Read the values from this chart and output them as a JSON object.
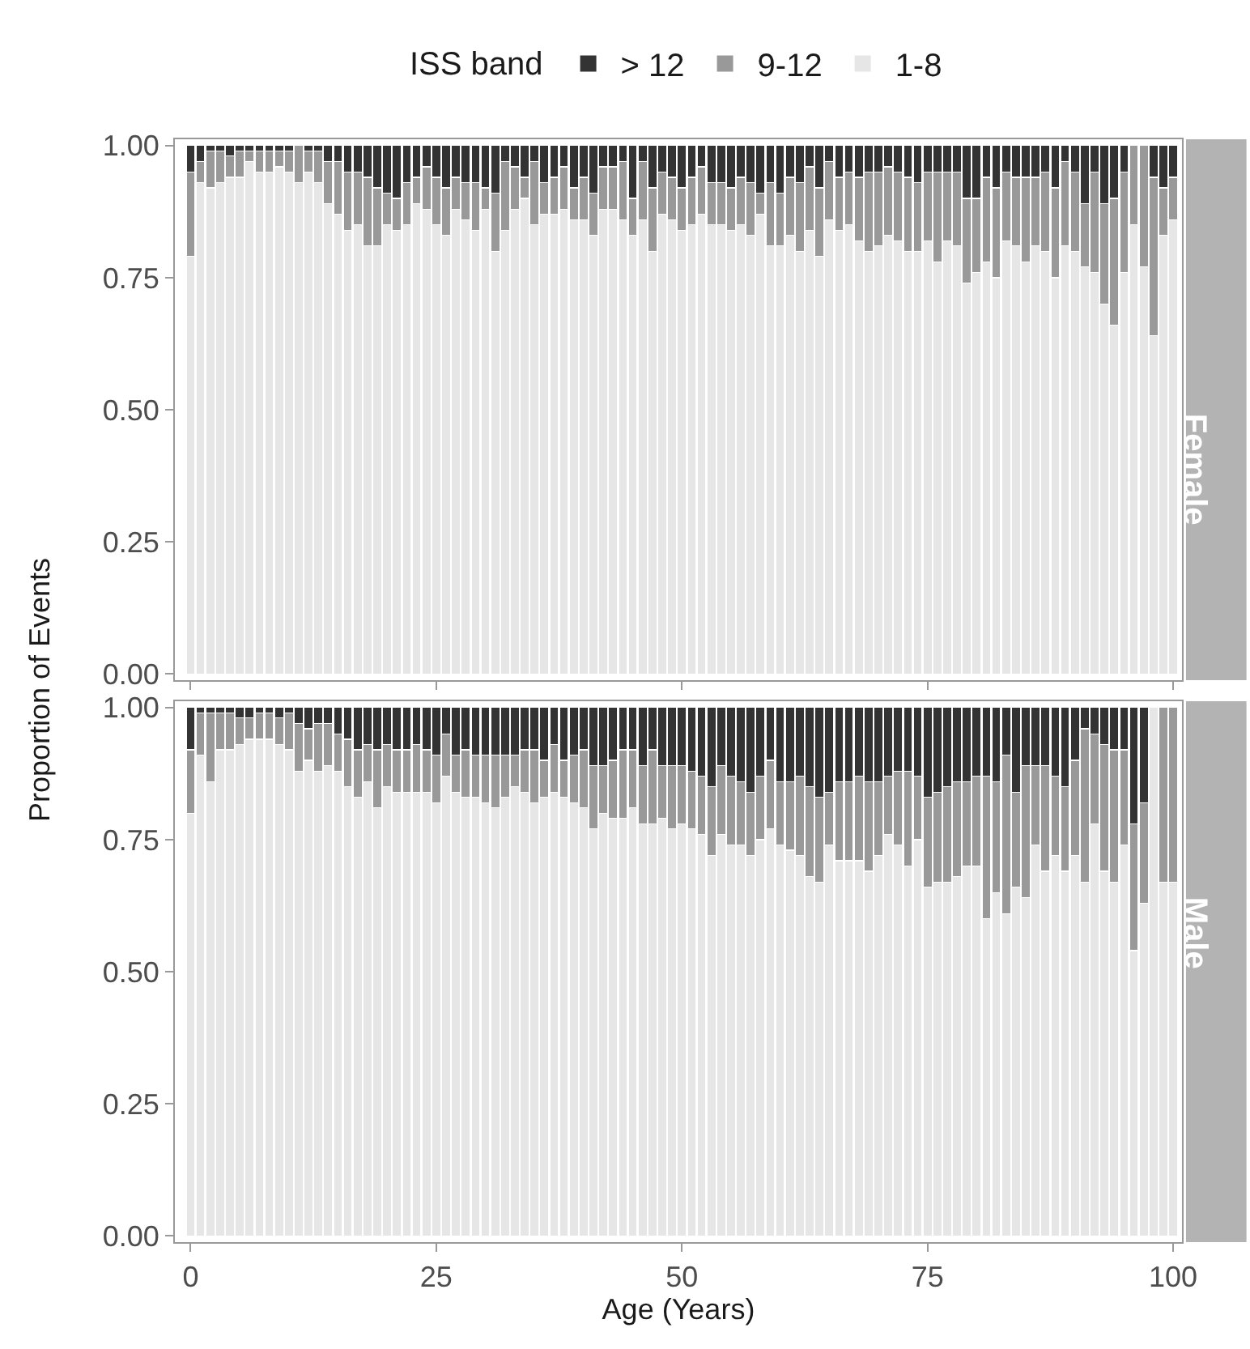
{
  "chart_data": [
    {
      "type": "bar",
      "title": "Female",
      "ylabel": "Proportion of Events",
      "legend_title": "ISS band",
      "legend": "top",
      "stacked": true,
      "tick_labels": "y",
      "x": [
        0,
        1,
        2,
        3,
        4,
        5,
        6,
        7,
        8,
        9,
        10,
        11,
        12,
        13,
        14,
        15,
        16,
        17,
        18,
        19,
        20,
        21,
        22,
        23,
        24,
        25,
        26,
        27,
        28,
        29,
        30,
        31,
        32,
        33,
        34,
        35,
        36,
        37,
        38,
        39,
        40,
        41,
        42,
        43,
        44,
        45,
        46,
        47,
        48,
        49,
        50,
        51,
        52,
        53,
        54,
        55,
        56,
        57,
        58,
        59,
        60,
        61,
        62,
        63,
        64,
        65,
        66,
        67,
        68,
        69,
        70,
        71,
        72,
        73,
        74,
        75,
        76,
        77,
        78,
        79,
        80,
        81,
        82,
        83,
        84,
        85,
        86,
        87,
        88,
        89,
        90,
        91,
        92,
        93,
        94,
        95,
        96,
        97,
        98,
        99,
        100
      ],
      "xlim": [
        -1.6,
        100.9
      ],
      "xticks": [
        0,
        25,
        50,
        75,
        100
      ],
      "ylim": [
        -0.012,
        1.012
      ],
      "yticks": [
        {
          "value": 0,
          "label": "0.00"
        },
        {
          "value": 0.25,
          "label": "0.25"
        },
        {
          "value": 0.5,
          "label": "0.50"
        },
        {
          "value": 0.75,
          "label": "0.75"
        },
        {
          "value": 1,
          "label": "1.00"
        }
      ],
      "series": [
        {
          "name": "1-8",
          "color": "#e6e6e6",
          "values": [
            0.79,
            0.93,
            0.92,
            0.93,
            0.94,
            0.94,
            0.97,
            0.95,
            0.95,
            0.96,
            0.95,
            0.93,
            0.95,
            0.93,
            0.89,
            0.87,
            0.84,
            0.85,
            0.81,
            0.81,
            0.85,
            0.84,
            0.85,
            0.89,
            0.88,
            0.85,
            0.83,
            0.88,
            0.86,
            0.84,
            0.88,
            0.8,
            0.84,
            0.88,
            0.9,
            0.85,
            0.87,
            0.87,
            0.88,
            0.86,
            0.86,
            0.83,
            0.88,
            0.88,
            0.86,
            0.83,
            0.86,
            0.8,
            0.87,
            0.86,
            0.84,
            0.85,
            0.87,
            0.85,
            0.85,
            0.84,
            0.85,
            0.83,
            0.87,
            0.81,
            0.81,
            0.83,
            0.8,
            0.84,
            0.79,
            0.86,
            0.84,
            0.85,
            0.82,
            0.8,
            0.81,
            0.83,
            0.82,
            0.8,
            0.8,
            0.82,
            0.78,
            0.82,
            0.81,
            0.74,
            0.76,
            0.78,
            0.75,
            0.82,
            0.81,
            0.78,
            0.81,
            0.8,
            0.75,
            0.81,
            0.8,
            0.77,
            0.76,
            0.7,
            0.66,
            0.76,
            0.85,
            0.77,
            0.64,
            0.83,
            0.86
          ]
        },
        {
          "name": "9-12",
          "color": "#999999",
          "values": [
            0.16,
            0.04,
            0.07,
            0.06,
            0.04,
            0.05,
            0.02,
            0.04,
            0.04,
            0.03,
            0.04,
            0.07,
            0.04,
            0.06,
            0.08,
            0.1,
            0.11,
            0.1,
            0.13,
            0.11,
            0.06,
            0.06,
            0.08,
            0.05,
            0.08,
            0.09,
            0.09,
            0.06,
            0.07,
            0.09,
            0.04,
            0.11,
            0.13,
            0.08,
            0.04,
            0.12,
            0.06,
            0.07,
            0.08,
            0.06,
            0.08,
            0.08,
            0.08,
            0.08,
            0.11,
            0.07,
            0.11,
            0.12,
            0.08,
            0.08,
            0.08,
            0.09,
            0.09,
            0.08,
            0.08,
            0.08,
            0.09,
            0.1,
            0.04,
            0.12,
            0.1,
            0.11,
            0.13,
            0.12,
            0.13,
            0.11,
            0.1,
            0.1,
            0.12,
            0.15,
            0.14,
            0.13,
            0.13,
            0.14,
            0.13,
            0.13,
            0.17,
            0.13,
            0.14,
            0.16,
            0.14,
            0.16,
            0.17,
            0.13,
            0.13,
            0.16,
            0.13,
            0.15,
            0.17,
            0.16,
            0.15,
            0.12,
            0.19,
            0.19,
            0.24,
            0.19,
            0.15,
            0.23,
            0.3,
            0.09,
            0.08
          ]
        },
        {
          "name": "> 12",
          "color": "#333333",
          "values": [
            0.05,
            0.03,
            0.01,
            0.01,
            0.02,
            0.01,
            0.01,
            0.01,
            0.01,
            0.01,
            0.01,
            0,
            0.01,
            0.01,
            0.03,
            0.03,
            0.05,
            0.05,
            0.06,
            0.08,
            0.09,
            0.1,
            0.07,
            0.06,
            0.04,
            0.06,
            0.08,
            0.06,
            0.07,
            0.07,
            0.08,
            0.09,
            0.03,
            0.04,
            0.06,
            0.03,
            0.07,
            0.06,
            0.04,
            0.08,
            0.06,
            0.09,
            0.04,
            0.04,
            0.03,
            0.1,
            0.03,
            0.08,
            0.05,
            0.06,
            0.08,
            0.06,
            0.04,
            0.07,
            0.07,
            0.08,
            0.06,
            0.07,
            0.09,
            0.07,
            0.09,
            0.06,
            0.07,
            0.04,
            0.08,
            0.03,
            0.06,
            0.05,
            0.06,
            0.05,
            0.05,
            0.04,
            0.05,
            0.06,
            0.07,
            0.05,
            0.05,
            0.05,
            0.05,
            0.1,
            0.1,
            0.06,
            0.08,
            0.05,
            0.06,
            0.06,
            0.06,
            0.05,
            0.08,
            0.03,
            0.05,
            0.11,
            0.05,
            0.11,
            0.1,
            0.05,
            0,
            0,
            0.06,
            0.08,
            0.06
          ]
        }
      ]
    },
    {
      "type": "bar",
      "title": "Male",
      "xlabel": "Age (Years)",
      "stacked": true,
      "x": [
        0,
        1,
        2,
        3,
        4,
        5,
        6,
        7,
        8,
        9,
        10,
        11,
        12,
        13,
        14,
        15,
        16,
        17,
        18,
        19,
        20,
        21,
        22,
        23,
        24,
        25,
        26,
        27,
        28,
        29,
        30,
        31,
        32,
        33,
        34,
        35,
        36,
        37,
        38,
        39,
        40,
        41,
        42,
        43,
        44,
        45,
        46,
        47,
        48,
        49,
        50,
        51,
        52,
        53,
        54,
        55,
        56,
        57,
        58,
        59,
        60,
        61,
        62,
        63,
        64,
        65,
        66,
        67,
        68,
        69,
        70,
        71,
        72,
        73,
        74,
        75,
        76,
        77,
        78,
        79,
        80,
        81,
        82,
        83,
        84,
        85,
        86,
        87,
        88,
        89,
        90,
        91,
        92,
        93,
        94,
        95,
        96,
        97,
        98,
        99,
        100
      ],
      "xlim": [
        -1.6,
        100.9
      ],
      "xticks": [
        0,
        25,
        50,
        75,
        100
      ],
      "ylim": [
        -0.012,
        1.012
      ],
      "yticks": [
        {
          "value": 0,
          "label": "0.00"
        },
        {
          "value": 0.25,
          "label": "0.25"
        },
        {
          "value": 0.5,
          "label": "0.50"
        },
        {
          "value": 0.75,
          "label": "0.75"
        },
        {
          "value": 1,
          "label": "1.00"
        }
      ],
      "series": [
        {
          "color": "#e6e6e6",
          "values": [
            0.8,
            0.91,
            0.86,
            0.92,
            0.92,
            0.93,
            0.94,
            0.94,
            0.94,
            0.93,
            0.92,
            0.88,
            0.9,
            0.88,
            0.89,
            0.88,
            0.85,
            0.83,
            0.86,
            0.81,
            0.85,
            0.84,
            0.84,
            0.84,
            0.84,
            0.82,
            0.87,
            0.84,
            0.83,
            0.83,
            0.82,
            0.81,
            0.83,
            0.85,
            0.84,
            0.82,
            0.83,
            0.84,
            0.83,
            0.82,
            0.81,
            0.77,
            0.8,
            0.79,
            0.79,
            0.81,
            0.78,
            0.78,
            0.79,
            0.77,
            0.78,
            0.77,
            0.76,
            0.72,
            0.76,
            0.74,
            0.74,
            0.72,
            0.75,
            0.77,
            0.74,
            0.73,
            0.72,
            0.68,
            0.67,
            0.74,
            0.71,
            0.71,
            0.71,
            0.69,
            0.72,
            0.76,
            0.74,
            0.7,
            0.75,
            0.66,
            0.67,
            0.67,
            0.68,
            0.7,
            0.7,
            0.6,
            0.65,
            0.61,
            0.66,
            0.64,
            0.74,
            0.69,
            0.72,
            0.69,
            0.72,
            0.67,
            0.78,
            0.69,
            0.67,
            0.74,
            0.54,
            0.63,
            1,
            0.67,
            0.67
          ]
        },
        {
          "color": "#999999",
          "values": [
            0.12,
            0.08,
            0.13,
            0.07,
            0.07,
            0.05,
            0.04,
            0.05,
            0.05,
            0.05,
            0.07,
            0.09,
            0.06,
            0.09,
            0.08,
            0.07,
            0.09,
            0.09,
            0.07,
            0.11,
            0.08,
            0.08,
            0.08,
            0.09,
            0.08,
            0.09,
            0.08,
            0.07,
            0.09,
            0.08,
            0.09,
            0.1,
            0.08,
            0.06,
            0.08,
            0.1,
            0.07,
            0.09,
            0.07,
            0.09,
            0.11,
            0.12,
            0.09,
            0.11,
            0.13,
            0.11,
            0.11,
            0.14,
            0.1,
            0.12,
            0.11,
            0.11,
            0.11,
            0.13,
            0.13,
            0.13,
            0.12,
            0.12,
            0.12,
            0.13,
            0.12,
            0.13,
            0.15,
            0.17,
            0.16,
            0.1,
            0.15,
            0.15,
            0.16,
            0.17,
            0.14,
            0.11,
            0.14,
            0.18,
            0.12,
            0.17,
            0.17,
            0.18,
            0.18,
            0.16,
            0.17,
            0.27,
            0.21,
            0.3,
            0.18,
            0.25,
            0.15,
            0.2,
            0.15,
            0.16,
            0.18,
            0.29,
            0.17,
            0.24,
            0.25,
            0.18,
            0.24,
            0.19,
            0,
            0.33,
            0.33
          ]
        },
        {
          "color": "#333333",
          "values": [
            0.08,
            0.01,
            0.01,
            0.01,
            0.01,
            0.02,
            0.02,
            0.01,
            0.01,
            0.02,
            0.01,
            0.03,
            0.04,
            0.03,
            0.03,
            0.05,
            0.06,
            0.08,
            0.07,
            0.08,
            0.07,
            0.08,
            0.08,
            0.07,
            0.08,
            0.09,
            0.05,
            0.09,
            0.08,
            0.09,
            0.09,
            0.09,
            0.09,
            0.09,
            0.08,
            0.08,
            0.1,
            0.07,
            0.1,
            0.09,
            0.08,
            0.11,
            0.11,
            0.1,
            0.08,
            0.08,
            0.11,
            0.08,
            0.11,
            0.11,
            0.11,
            0.12,
            0.13,
            0.15,
            0.11,
            0.13,
            0.14,
            0.16,
            0.13,
            0.1,
            0.14,
            0.14,
            0.13,
            0.15,
            0.17,
            0.16,
            0.14,
            0.14,
            0.13,
            0.14,
            0.14,
            0.13,
            0.12,
            0.12,
            0.13,
            0.17,
            0.16,
            0.15,
            0.14,
            0.14,
            0.13,
            0.13,
            0.14,
            0.09,
            0.16,
            0.11,
            0.11,
            0.11,
            0.13,
            0.15,
            0.1,
            0.04,
            0.05,
            0.07,
            0.08,
            0.08,
            0.22,
            0.18,
            0,
            0,
            0
          ]
        }
      ]
    }
  ]
}
